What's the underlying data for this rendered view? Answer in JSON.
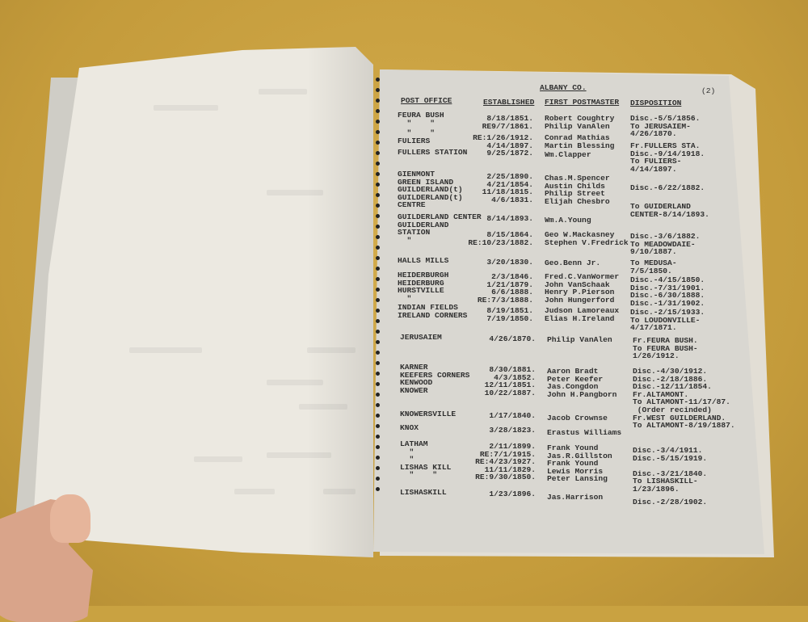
{
  "page": {
    "county": "ALBANY CO.",
    "page_number": "(2)",
    "columns": {
      "post_office": "POST OFFICE",
      "established": "ESTABLISHED",
      "first_postmaster": "FIRST POSTMASTER",
      "disposition": "DISPOSITION"
    },
    "entries": [
      {
        "post_office": "FEURA BUSH\n  \"    \"",
        "established": "8/18/1851.\nRE9/7/1861.",
        "first_postmaster": "Robert Coughtry\nPhilip VanAlen",
        "disposition": "Disc.-5/5/1856.\nTo JERUSAIEM-\n4/26/1870."
      },
      {
        "post_office": "  \"    \"\nFULIERS",
        "established": "RE:1/26/1912.\n4/14/1897.",
        "first_postmaster": "Conrad Mathias\nMartin Blessing",
        "disposition": "Fr.FULLERS STA.\nDisc.-9/14/1918.\nTo FULIERS-\n4/14/1897."
      },
      {
        "post_office": "FULLERS STATION",
        "established": "9/25/1872.",
        "first_postmaster": "Wm.Clapper",
        "disposition": ""
      },
      {
        "post_office": "GIENMONT\nGREEN ISLAND\nGUILDERLAND(t)\nGUILDERLAND(t)\nCENTRE",
        "established": "2/25/1890.\n4/21/1854.\n11/18/1815.\n4/6/1831.",
        "first_postmaster": "Chas.M.Spencer\nAustin Childs\nPhilip Street\nElijah Chesbro",
        "disposition": "Disc.-6/22/1882."
      },
      {
        "post_office": "GUILDERLAND CENTER\nGUILDERLAND\nSTATION\n  \"",
        "established": "8/14/1893.",
        "first_postmaster": "Wm.A.Young",
        "disposition": "To GUIDERLAND\nCENTER-8/14/1893."
      },
      {
        "post_office": "",
        "established": "8/15/1864.\nRE:10/23/1882.",
        "first_postmaster": "Geo W.Mackasney\nStephen V.Fredrick",
        "disposition": "Disc.-3/6/1882.\nTo MEADOWDAIE-\n9/10/1887."
      },
      {
        "post_office": "HALLS MILLS",
        "established": "3/20/1830.",
        "first_postmaster": "Geo.Benn Jr.",
        "disposition": "To MEDUSA-\n7/5/1850."
      },
      {
        "post_office": "HEIDERBURGH\nHEIDERBURG\nHURSTVILLE\n  \"",
        "established": "2/3/1846.\n1/21/1879.\n6/6/1888.\nRE:7/3/1888.",
        "first_postmaster": "Fred.C.VanWormer\nJohn VanSchaak\nHenry P.Pierson\nJohn Hungerford",
        "disposition": "Disc.-4/15/1850.\nDisc.-7/31/1901.\nDisc.-6/30/1888.\nDisc.-1/31/1902."
      },
      {
        "post_office": "INDIAN FIELDS\nIRELAND CORNERS",
        "established": "8/19/1851.\n7/19/1850.",
        "first_postmaster": "Judson Lamoreaux\nElias H.Ireland",
        "disposition": "Disc.-2/15/1933.\nTo LOUDONVILLE-\n4/17/1871."
      },
      {
        "post_office": "JERUSAIEM",
        "established": "4/26/1870.",
        "first_postmaster": "Philip VanAlen",
        "disposition": "Fr.FEURA BUSH.\nTo FEURA BUSH-\n1/26/1912."
      },
      {
        "post_office": "KARNER\nKEEFERS CORNERS\nKENWOOD\nKNOWER",
        "established": "8/30/1881.\n4/3/1852.\n12/11/1851.\n10/22/1887.",
        "first_postmaster": "Aaron Bradt\nPeter Keefer\nJas.Congdon\nJohn H.Pangborn",
        "disposition": "Disc.-4/30/1912.\nDisc.-2/18/1886.\nDisc.-12/11/1854.\nFr.ALTAMONT.\nTo ALTAMONT-11/17/87.\n (Order recinded)\nFr.WEST GUILDERLAND.\nTo ALTAMONT-8/19/1887."
      },
      {
        "post_office": "KNOWERSVILLE",
        "established": "1/17/1840.",
        "first_postmaster": "Jacob Crownse",
        "disposition": ""
      },
      {
        "post_office": "KNOX",
        "established": "3/28/1823.",
        "first_postmaster": "Erastus Williams",
        "disposition": ""
      },
      {
        "post_office": "LATHAM\n  \"\n  \"\nLISHAS KILL\n  \"    \"",
        "established": "2/11/1899.\nRE:7/1/1915.\nRE:4/23/1927.\n11/11/1829.\nRE:9/30/1850.",
        "first_postmaster": "Frank Yound\nJas.R.Gillston\nFrank Yound\nLewis Morris\nPeter Lansing",
        "disposition": "Disc.-3/4/1911.\nDisc.-5/15/1919.\n\nDisc.-3/21/1840.\nTo LISHASKILL-\n1/23/1896."
      },
      {
        "post_office": "LISHASKILL",
        "established": "1/23/1896.",
        "first_postmaster": "Jas.Harrison",
        "disposition": "Disc.-2/28/1902."
      }
    ]
  },
  "colors": {
    "background": "#c9a241",
    "page": "#d9d7d1",
    "ink": "#2f2f2f"
  }
}
